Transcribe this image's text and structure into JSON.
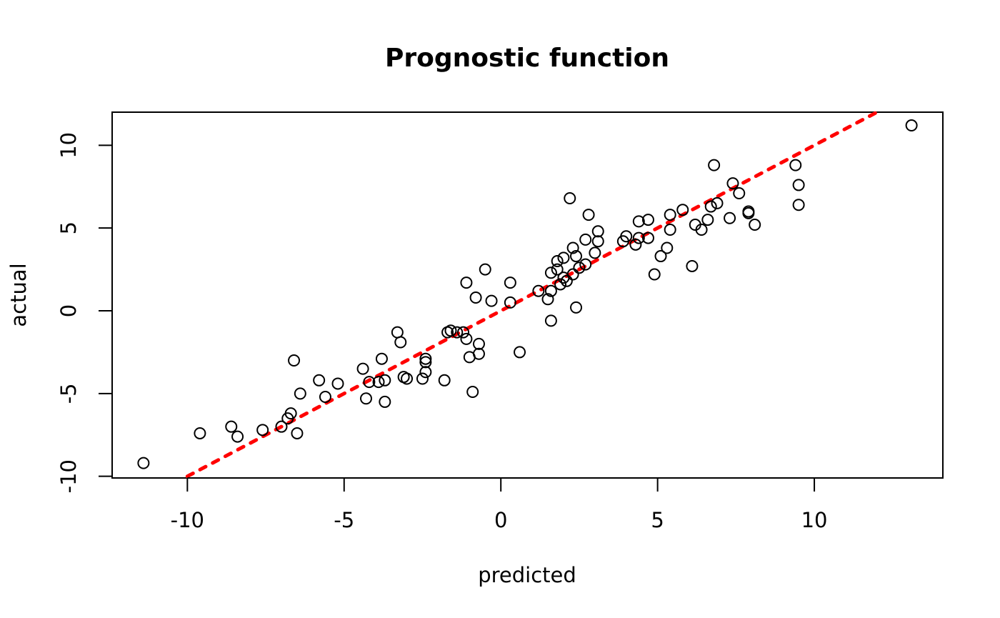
{
  "chart_data": {
    "type": "scatter",
    "title": "Prognostic function",
    "xlabel": "predicted",
    "ylabel": "actual",
    "xlim": [
      -12.4,
      14.1
    ],
    "ylim": [
      -10.1,
      12.0
    ],
    "x_ticks": [
      -10,
      -5,
      0,
      5,
      10
    ],
    "y_ticks": [
      -10,
      -5,
      0,
      5,
      10
    ],
    "x_tick_labels": [
      "-10",
      "-5",
      "0",
      "5",
      "10"
    ],
    "y_tick_labels": [
      "-10",
      "-5",
      "0",
      "5",
      "10"
    ],
    "grid": false,
    "legend": "none",
    "point_color": "#000000",
    "reference_line": {
      "type": "identity",
      "slope": 1,
      "intercept": 0,
      "style": "dotted",
      "color": "#ff0000",
      "from": -10,
      "to": 12
    },
    "points": [
      {
        "x": -11.4,
        "y": -9.2
      },
      {
        "x": -9.6,
        "y": -7.4
      },
      {
        "x": -8.6,
        "y": -7.0
      },
      {
        "x": -8.4,
        "y": -7.6
      },
      {
        "x": -7.6,
        "y": -7.2
      },
      {
        "x": -7.0,
        "y": -7.0
      },
      {
        "x": -6.8,
        "y": -6.5
      },
      {
        "x": -6.7,
        "y": -6.2
      },
      {
        "x": -6.6,
        "y": -3.0
      },
      {
        "x": -6.5,
        "y": -7.4
      },
      {
        "x": -6.4,
        "y": -5.0
      },
      {
        "x": -5.8,
        "y": -4.2
      },
      {
        "x": -5.6,
        "y": -5.2
      },
      {
        "x": -5.2,
        "y": -4.4
      },
      {
        "x": -4.4,
        "y": -3.5
      },
      {
        "x": -4.3,
        "y": -5.3
      },
      {
        "x": -4.2,
        "y": -4.3
      },
      {
        "x": -3.9,
        "y": -4.3
      },
      {
        "x": -3.8,
        "y": -2.9
      },
      {
        "x": -3.7,
        "y": -4.2
      },
      {
        "x": -3.7,
        "y": -5.5
      },
      {
        "x": -3.3,
        "y": -1.3
      },
      {
        "x": -3.2,
        "y": -1.9
      },
      {
        "x": -3.1,
        "y": -4.0
      },
      {
        "x": -3.0,
        "y": -4.1
      },
      {
        "x": -2.5,
        "y": -4.1
      },
      {
        "x": -2.4,
        "y": -3.7
      },
      {
        "x": -2.4,
        "y": -3.1
      },
      {
        "x": -2.4,
        "y": -2.9
      },
      {
        "x": -1.8,
        "y": -4.2
      },
      {
        "x": -1.7,
        "y": -1.3
      },
      {
        "x": -1.6,
        "y": -1.2
      },
      {
        "x": -1.4,
        "y": -1.3
      },
      {
        "x": -1.2,
        "y": -1.3
      },
      {
        "x": -1.1,
        "y": -1.7
      },
      {
        "x": -1.1,
        "y": 1.7
      },
      {
        "x": -1.0,
        "y": -2.8
      },
      {
        "x": -0.9,
        "y": -4.9
      },
      {
        "x": -0.8,
        "y": 0.8
      },
      {
        "x": -0.7,
        "y": -2.0
      },
      {
        "x": -0.7,
        "y": -2.6
      },
      {
        "x": -0.5,
        "y": 2.5
      },
      {
        "x": -0.3,
        "y": 0.6
      },
      {
        "x": 0.3,
        "y": 0.5
      },
      {
        "x": 0.3,
        "y": 1.7
      },
      {
        "x": 0.6,
        "y": -2.5
      },
      {
        "x": 1.2,
        "y": 1.2
      },
      {
        "x": 1.5,
        "y": 0.7
      },
      {
        "x": 1.6,
        "y": 1.2
      },
      {
        "x": 1.6,
        "y": 2.3
      },
      {
        "x": 1.6,
        "y": -0.6
      },
      {
        "x": 1.8,
        "y": 2.5
      },
      {
        "x": 1.8,
        "y": 3.0
      },
      {
        "x": 1.9,
        "y": 1.6
      },
      {
        "x": 2.0,
        "y": 2.0
      },
      {
        "x": 2.0,
        "y": 3.2
      },
      {
        "x": 2.1,
        "y": 1.8
      },
      {
        "x": 2.2,
        "y": 6.8
      },
      {
        "x": 2.3,
        "y": 2.2
      },
      {
        "x": 2.3,
        "y": 3.8
      },
      {
        "x": 2.4,
        "y": 3.3
      },
      {
        "x": 2.4,
        "y": 0.2
      },
      {
        "x": 2.5,
        "y": 2.6
      },
      {
        "x": 2.7,
        "y": 2.8
      },
      {
        "x": 2.7,
        "y": 4.3
      },
      {
        "x": 2.8,
        "y": 5.8
      },
      {
        "x": 3.0,
        "y": 3.5
      },
      {
        "x": 3.1,
        "y": 4.2
      },
      {
        "x": 3.1,
        "y": 4.8
      },
      {
        "x": 3.9,
        "y": 4.2
      },
      {
        "x": 4.0,
        "y": 4.5
      },
      {
        "x": 4.3,
        "y": 4.0
      },
      {
        "x": 4.4,
        "y": 5.4
      },
      {
        "x": 4.4,
        "y": 4.4
      },
      {
        "x": 4.7,
        "y": 5.5
      },
      {
        "x": 4.7,
        "y": 4.4
      },
      {
        "x": 4.9,
        "y": 2.2
      },
      {
        "x": 5.1,
        "y": 3.3
      },
      {
        "x": 5.3,
        "y": 3.8
      },
      {
        "x": 5.4,
        "y": 4.9
      },
      {
        "x": 5.4,
        "y": 5.8
      },
      {
        "x": 5.8,
        "y": 6.1
      },
      {
        "x": 6.1,
        "y": 2.7
      },
      {
        "x": 6.2,
        "y": 5.2
      },
      {
        "x": 6.4,
        "y": 4.9
      },
      {
        "x": 6.6,
        "y": 5.5
      },
      {
        "x": 6.7,
        "y": 6.3
      },
      {
        "x": 6.8,
        "y": 8.8
      },
      {
        "x": 6.9,
        "y": 6.5
      },
      {
        "x": 7.3,
        "y": 5.6
      },
      {
        "x": 7.4,
        "y": 7.7
      },
      {
        "x": 7.6,
        "y": 7.1
      },
      {
        "x": 7.9,
        "y": 5.9
      },
      {
        "x": 7.9,
        "y": 6.0
      },
      {
        "x": 8.1,
        "y": 5.2
      },
      {
        "x": 9.4,
        "y": 8.8
      },
      {
        "x": 9.5,
        "y": 7.6
      },
      {
        "x": 9.5,
        "y": 6.4
      },
      {
        "x": 13.1,
        "y": 11.2
      }
    ]
  }
}
